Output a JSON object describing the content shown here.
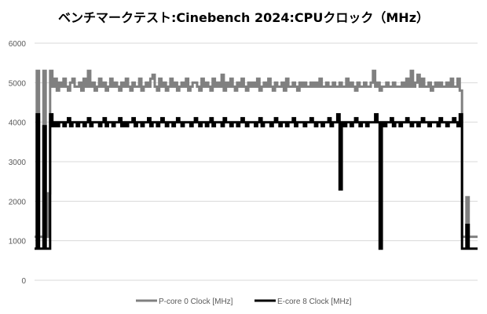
{
  "chart_data": {
    "type": "line",
    "title": "ベンチマークテスト:Cinebench 2024:CPUクロック（MHz）",
    "xlabel": "",
    "ylabel": "",
    "ylim": [
      0,
      6000
    ],
    "yticks": [
      "0",
      "1000",
      "2000",
      "3000",
      "4000",
      "5000",
      "6000"
    ],
    "grid": true,
    "legend_position": "bottom",
    "series": [
      {
        "name": "P-core 0 Clock [MHz]",
        "color": "#808080",
        "values": [
          1100,
          5300,
          1100,
          1100,
          5300,
          1100,
          2200,
          5300,
          4900,
          5100,
          4800,
          5000,
          4900,
          5100,
          4900,
          4800,
          5000,
          5100,
          4900,
          4900,
          5000,
          4800,
          5100,
          4900,
          5300,
          4900,
          5000,
          4800,
          4900,
          5100,
          4900,
          5000,
          4800,
          4900,
          5100,
          4900,
          5000,
          4900,
          4800,
          5000,
          4900,
          5100,
          4900,
          4800,
          5000,
          4900,
          4900,
          5100,
          4800,
          4900,
          5000,
          4900,
          5100,
          5200,
          4900,
          4800,
          5100,
          4900,
          5000,
          4800,
          4900,
          5100,
          4900,
          5000,
          4800,
          4900,
          5000,
          4900,
          5100,
          4800,
          4900,
          5000,
          5000,
          4900,
          4800,
          5100,
          4900,
          5000,
          4900,
          4800,
          5100,
          4900,
          5000,
          4900,
          5200,
          4800,
          5000,
          4900,
          5100,
          4900,
          4800,
          5000,
          4900,
          5100,
          4900,
          4800,
          5000,
          4900,
          5000,
          4900,
          5100,
          4800,
          4900,
          5000,
          4900,
          5100,
          4900,
          4800,
          5000,
          4900,
          4900,
          5000,
          4800,
          5100,
          4900,
          4900,
          5000,
          4900,
          4800,
          5000,
          4900,
          5000,
          4900,
          4900,
          5000,
          4900,
          5000,
          4900,
          5100,
          4900,
          4900,
          5000,
          4900,
          4900,
          5000,
          4900,
          4900,
          5000,
          4900,
          4900,
          5100,
          4900,
          5000,
          4900,
          4800,
          5000,
          4900,
          4900,
          5000,
          4900,
          4900,
          5000,
          5300,
          4900,
          5000,
          4800,
          4900,
          4900,
          5000,
          4900,
          4900,
          5000,
          4900,
          4900,
          4900,
          5000,
          4900,
          5100,
          4900,
          5300,
          4900,
          5000,
          5200,
          4900,
          5100,
          4900,
          4900,
          5000,
          4800,
          4900,
          5000,
          4900,
          5000,
          4900,
          4900,
          5000,
          4900,
          5100,
          4900,
          4900,
          5100,
          4800,
          1100,
          1100,
          2100,
          1100,
          1100,
          1100,
          1100,
          1100
        ]
      },
      {
        "name": "E-core 8 Clock [MHz]",
        "color": "#000000",
        "values": [
          800,
          4200,
          800,
          800,
          3900,
          800,
          800,
          4200,
          3900,
          4000,
          3900,
          4000,
          4000,
          3900,
          4000,
          4100,
          3900,
          4000,
          4000,
          3900,
          4000,
          4000,
          3900,
          4000,
          4100,
          3900,
          4000,
          4000,
          4000,
          3900,
          4000,
          4100,
          3900,
          4000,
          4000,
          3900,
          4000,
          4000,
          4100,
          3900,
          4000,
          3900,
          4000,
          4000,
          4100,
          3900,
          4000,
          4000,
          3900,
          4000,
          4000,
          4100,
          3900,
          4000,
          4000,
          3900,
          4000,
          4100,
          4000,
          3900,
          4000,
          4000,
          3900,
          4000,
          4100,
          4000,
          3900,
          4000,
          4000,
          4000,
          3900,
          4000,
          4100,
          4000,
          3900,
          4000,
          4000,
          3900,
          4000,
          4100,
          3900,
          4000,
          4000,
          4000,
          3900,
          4100,
          4000,
          4000,
          3900,
          4000,
          4000,
          3900,
          4000,
          4100,
          4000,
          3900,
          4000,
          4000,
          4000,
          3900,
          4000,
          4100,
          3900,
          4000,
          4000,
          4000,
          3900,
          4000,
          4100,
          4000,
          3900,
          4000,
          4000,
          3900,
          4000,
          4000,
          4100,
          3900,
          4000,
          4000,
          4000,
          3900,
          4000,
          4000,
          4100,
          4000,
          3900,
          4000,
          4000,
          3900,
          4000,
          4000,
          4100,
          3900,
          4000,
          4000,
          4200,
          2300,
          4000,
          3900,
          4000,
          4000,
          3900,
          4000,
          4100,
          4000,
          3900,
          4000,
          4000,
          3900,
          4000,
          4000,
          4000,
          4200,
          4000,
          800,
          4000,
          3900,
          4000,
          4000,
          4100,
          3900,
          4000,
          4000,
          3900,
          4000,
          4000,
          4100,
          4000,
          3900,
          4000,
          4000,
          3900,
          4000,
          4100,
          4000,
          4000,
          3900,
          4000,
          4000,
          4000,
          3900,
          4100,
          4000,
          4000,
          3900,
          4000,
          4000,
          4100,
          4000,
          3900,
          4200,
          800,
          800,
          1400,
          800,
          800,
          800,
          800,
          800
        ]
      }
    ]
  }
}
